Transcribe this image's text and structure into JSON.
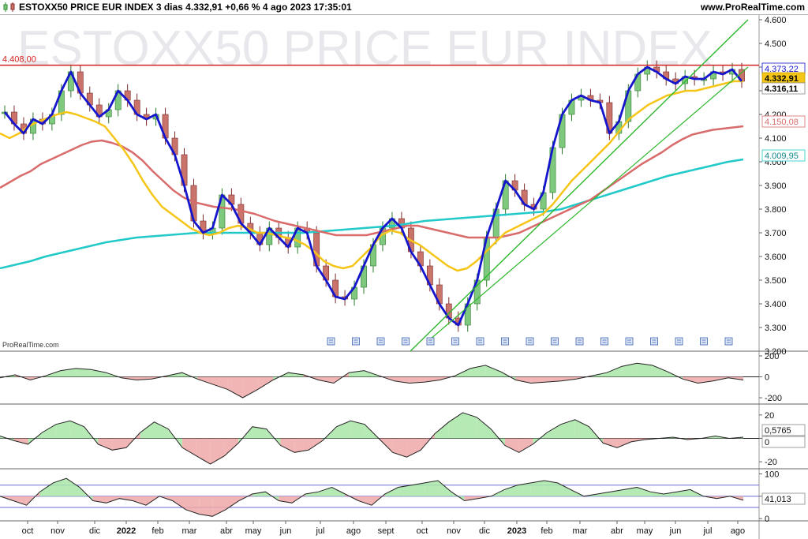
{
  "header": {
    "title": "ESTOXX50 PRICE EUR INDEX 3 dias 4.332,91 +0,66 % 4 ago 2023 17:35:01",
    "site": "www.ProRealTime.com"
  },
  "watermark": "ESTOXX50 PRICE EUR INDEX",
  "credit": "ProRealTime.com",
  "colors": {
    "up": "#7fc97f",
    "down": "#c9736b",
    "blue": "#1515cc",
    "yellow": "#f5c518",
    "red_ma": "#d96b6b",
    "cyan": "#22c9c9",
    "resistance": "#d62020",
    "trend": "#2eb82e"
  },
  "chart_data": [
    {
      "type": "line",
      "panel": "price",
      "ylim": [
        3200,
        4620
      ],
      "y_ticks": [
        "4.600",
        "4.500",
        "4.400",
        "4.300",
        "4.200",
        "4.100",
        "4.000",
        "3.900",
        "3.800",
        "3.700",
        "3.600",
        "3.500",
        "3.400",
        "3.300",
        "3.200"
      ],
      "x_ticks": [
        "oct",
        "nov",
        "dic",
        "2022",
        "feb",
        "mar",
        "abr",
        "may",
        "jun",
        "jul",
        "ago",
        "sept",
        "oct",
        "nov",
        "dic",
        "2023",
        "feb",
        "mar",
        "abr",
        "may",
        "jun",
        "jul",
        "ago"
      ],
      "resistance": {
        "label": "4.408,00",
        "value": 4408
      },
      "price_labels": [
        {
          "text": "4.373,22",
          "value": 4373
        },
        {
          "text": "4.332,91",
          "value": 4333
        },
        {
          "text": "4.316,11",
          "value": 4316
        },
        {
          "text": "4.150,08",
          "value": 4150
        },
        {
          "text": "4.009,95",
          "value": 4010
        }
      ],
      "series": [
        {
          "values": [
            4210,
            4160,
            4120,
            4180,
            4160,
            4200,
            4300,
            4380,
            4290,
            4240,
            4190,
            4220,
            4300,
            4260,
            4200,
            4180,
            4200,
            4100,
            4030,
            3900,
            3750,
            3700,
            3720,
            3860,
            3820,
            3740,
            3700,
            3650,
            3720,
            3680,
            3640,
            3720,
            3700,
            3560,
            3500,
            3430,
            3420,
            3470,
            3560,
            3650,
            3720,
            3760,
            3720,
            3620,
            3560,
            3480,
            3400,
            3340,
            3310,
            3400,
            3500,
            3680,
            3800,
            3920,
            3880,
            3820,
            3800,
            3870,
            4060,
            4200,
            4260,
            4280,
            4260,
            4250,
            4120,
            4170,
            4300,
            4370,
            4400,
            4380,
            4350,
            4330,
            4360,
            4350,
            4350,
            4380,
            4370,
            4390,
            4340
          ]
        },
        {
          "values": [
            4120,
            4100,
            4120,
            4150,
            4170,
            4185,
            4200,
            4210,
            4200,
            4185,
            4170,
            4150,
            4100,
            4050,
            3990,
            3920,
            3860,
            3810,
            3780,
            3750,
            3720,
            3700,
            3690,
            3700,
            3720,
            3730,
            3720,
            3700,
            3700,
            3690,
            3680,
            3670,
            3650,
            3620,
            3580,
            3560,
            3550,
            3560,
            3600,
            3640,
            3690,
            3710,
            3700,
            3670,
            3650,
            3620,
            3590,
            3560,
            3540,
            3550,
            3580,
            3620,
            3660,
            3700,
            3720,
            3740,
            3760,
            3780,
            3820,
            3870,
            3920,
            3960,
            4000,
            4040,
            4080,
            4130,
            4180,
            4210,
            4240,
            4260,
            4280,
            4290,
            4300,
            4300,
            4310,
            4320,
            4330,
            4340,
            4340
          ]
        },
        {
          "values": [
            3890,
            3915,
            3940,
            3960,
            3990,
            4010,
            4030,
            4050,
            4070,
            4085,
            4090,
            4080,
            4065,
            4040,
            4005,
            3960,
            3920,
            3880,
            3850,
            3830,
            3820,
            3810,
            3805,
            3800,
            3790,
            3780,
            3765,
            3750,
            3740,
            3730,
            3720,
            3710,
            3700,
            3690,
            3690,
            3690,
            3690,
            3700,
            3710,
            3720,
            3730,
            3730,
            3720,
            3710,
            3700,
            3690,
            3680,
            3680,
            3680,
            3680,
            3690,
            3700,
            3720,
            3740,
            3760,
            3780,
            3800,
            3820,
            3840,
            3870,
            3900,
            3930,
            3960,
            3990,
            4015,
            4040,
            4070,
            4095,
            4115,
            4125,
            4135,
            4140,
            4145,
            4150
          ]
        },
        {
          "values": [
            3550,
            3565,
            3580,
            3600,
            3615,
            3630,
            3645,
            3660,
            3670,
            3680,
            3685,
            3690,
            3695,
            3700,
            3700,
            3700,
            3700,
            3700,
            3700,
            3700,
            3700,
            3705,
            3710,
            3715,
            3720,
            3725,
            3730,
            3740,
            3750,
            3755,
            3760,
            3765,
            3770,
            3775,
            3780,
            3785,
            3790,
            3800,
            3820,
            3840,
            3860,
            3880,
            3900,
            3920,
            3940,
            3955,
            3970,
            3985,
            4000,
            4010
          ]
        }
      ]
    },
    {
      "type": "area",
      "panel": "oscillator-1",
      "y_ticks": [
        "200",
        "0",
        "-200"
      ],
      "series": [
        {
          "values": [
            -10,
            20,
            -30,
            10,
            60,
            80,
            70,
            40,
            -10,
            -30,
            -20,
            10,
            40,
            -20,
            -70,
            -120,
            -200,
            -120,
            -30,
            40,
            20,
            -30,
            -60,
            40,
            60,
            10,
            -40,
            -60,
            -50,
            -30,
            10,
            80,
            110,
            50,
            -30,
            -60,
            -50,
            -40,
            -20,
            10,
            40,
            100,
            130,
            110,
            50,
            -20,
            -60,
            -40,
            -10,
            -30
          ]
        }
      ]
    },
    {
      "type": "area",
      "panel": "oscillator-2",
      "y_ticks": [
        "20",
        "0",
        "-20"
      ],
      "value_label": "0,5765",
      "zero_label": "0",
      "series": [
        {
          "values": [
            2,
            -2,
            -5,
            5,
            12,
            15,
            10,
            -5,
            -10,
            -8,
            5,
            14,
            8,
            -8,
            -15,
            -22,
            -15,
            -4,
            10,
            8,
            -6,
            -12,
            -10,
            -2,
            10,
            15,
            12,
            0,
            -12,
            -16,
            -10,
            4,
            14,
            22,
            18,
            8,
            -6,
            -12,
            -5,
            5,
            12,
            16,
            10,
            -4,
            -8,
            -3,
            -1,
            0,
            1,
            -1,
            0,
            2,
            0,
            1
          ]
        }
      ]
    },
    {
      "type": "area",
      "panel": "oscillator-3",
      "y_ticks": [
        "100",
        "50",
        "0"
      ],
      "value_label": "41,013",
      "series": [
        {
          "values": [
            50,
            40,
            30,
            60,
            80,
            90,
            70,
            40,
            35,
            45,
            40,
            30,
            50,
            40,
            20,
            10,
            5,
            20,
            40,
            55,
            60,
            40,
            35,
            55,
            60,
            70,
            55,
            40,
            30,
            55,
            70,
            75,
            80,
            85,
            60,
            40,
            45,
            50,
            65,
            75,
            80,
            85,
            80,
            65,
            50,
            55,
            60,
            65,
            70,
            60,
            55,
            60,
            65,
            50,
            45,
            50,
            41
          ]
        }
      ]
    }
  ]
}
